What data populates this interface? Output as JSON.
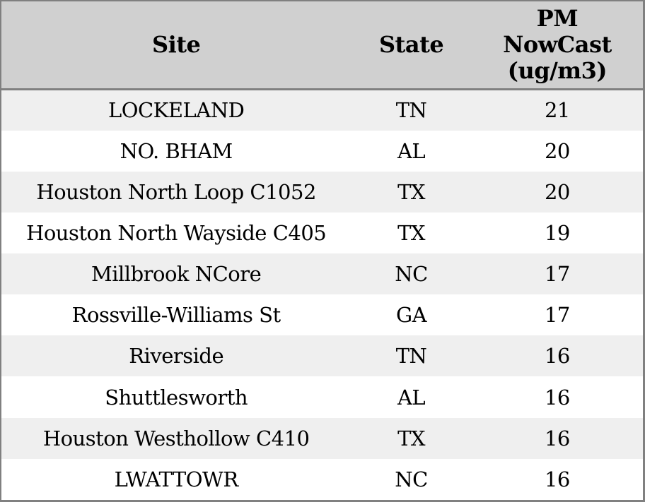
{
  "table": {
    "columns": [
      {
        "label": "Site"
      },
      {
        "label": "State"
      },
      {
        "label": "PM\nNowCast\n(ug/m3)"
      }
    ],
    "rows": [
      {
        "site": "LOCKELAND",
        "state": "TN",
        "pm_nowcast": 21
      },
      {
        "site": "NO. BHAM",
        "state": "AL",
        "pm_nowcast": 20
      },
      {
        "site": "Houston North Loop C1052",
        "state": "TX",
        "pm_nowcast": 20
      },
      {
        "site": "Houston North Wayside C405",
        "state": "TX",
        "pm_nowcast": 19
      },
      {
        "site": "Millbrook NCore",
        "state": "NC",
        "pm_nowcast": 17
      },
      {
        "site": "Rossville-Williams St",
        "state": "GA",
        "pm_nowcast": 17
      },
      {
        "site": "Riverside",
        "state": "TN",
        "pm_nowcast": 16
      },
      {
        "site": "Shuttlesworth",
        "state": "AL",
        "pm_nowcast": 16
      },
      {
        "site": "Houston Westhollow C410",
        "state": "TX",
        "pm_nowcast": 16
      },
      {
        "site": "LWATTOWR",
        "state": "NC",
        "pm_nowcast": 16
      }
    ]
  },
  "colors": {
    "header_bg": "#d0d0d0",
    "row_alt_bg": "#efefef",
    "row_bg": "#ffffff",
    "border": "#808080",
    "text": "#000000"
  },
  "chart_data": {
    "type": "table",
    "title": "",
    "columns": [
      "Site",
      "State",
      "PM NowCast (ug/m3)"
    ],
    "rows": [
      [
        "LOCKELAND",
        "TN",
        21
      ],
      [
        "NO. BHAM",
        "AL",
        20
      ],
      [
        "Houston North Loop C1052",
        "TX",
        20
      ],
      [
        "Houston North Wayside C405",
        "TX",
        19
      ],
      [
        "Millbrook NCore",
        "NC",
        17
      ],
      [
        "Rossville-Williams St",
        "GA",
        17
      ],
      [
        "Riverside",
        "TN",
        16
      ],
      [
        "Shuttlesworth",
        "AL",
        16
      ],
      [
        "Houston Westhollow C410",
        "TX",
        16
      ],
      [
        "LWATTOWR",
        "NC",
        16
      ]
    ],
    "layout_hints": {
      "header_background": "#d0d0d0",
      "alternating_rows": true,
      "text_align": "center",
      "grid": "outer-border-and-header-separator-only"
    }
  }
}
